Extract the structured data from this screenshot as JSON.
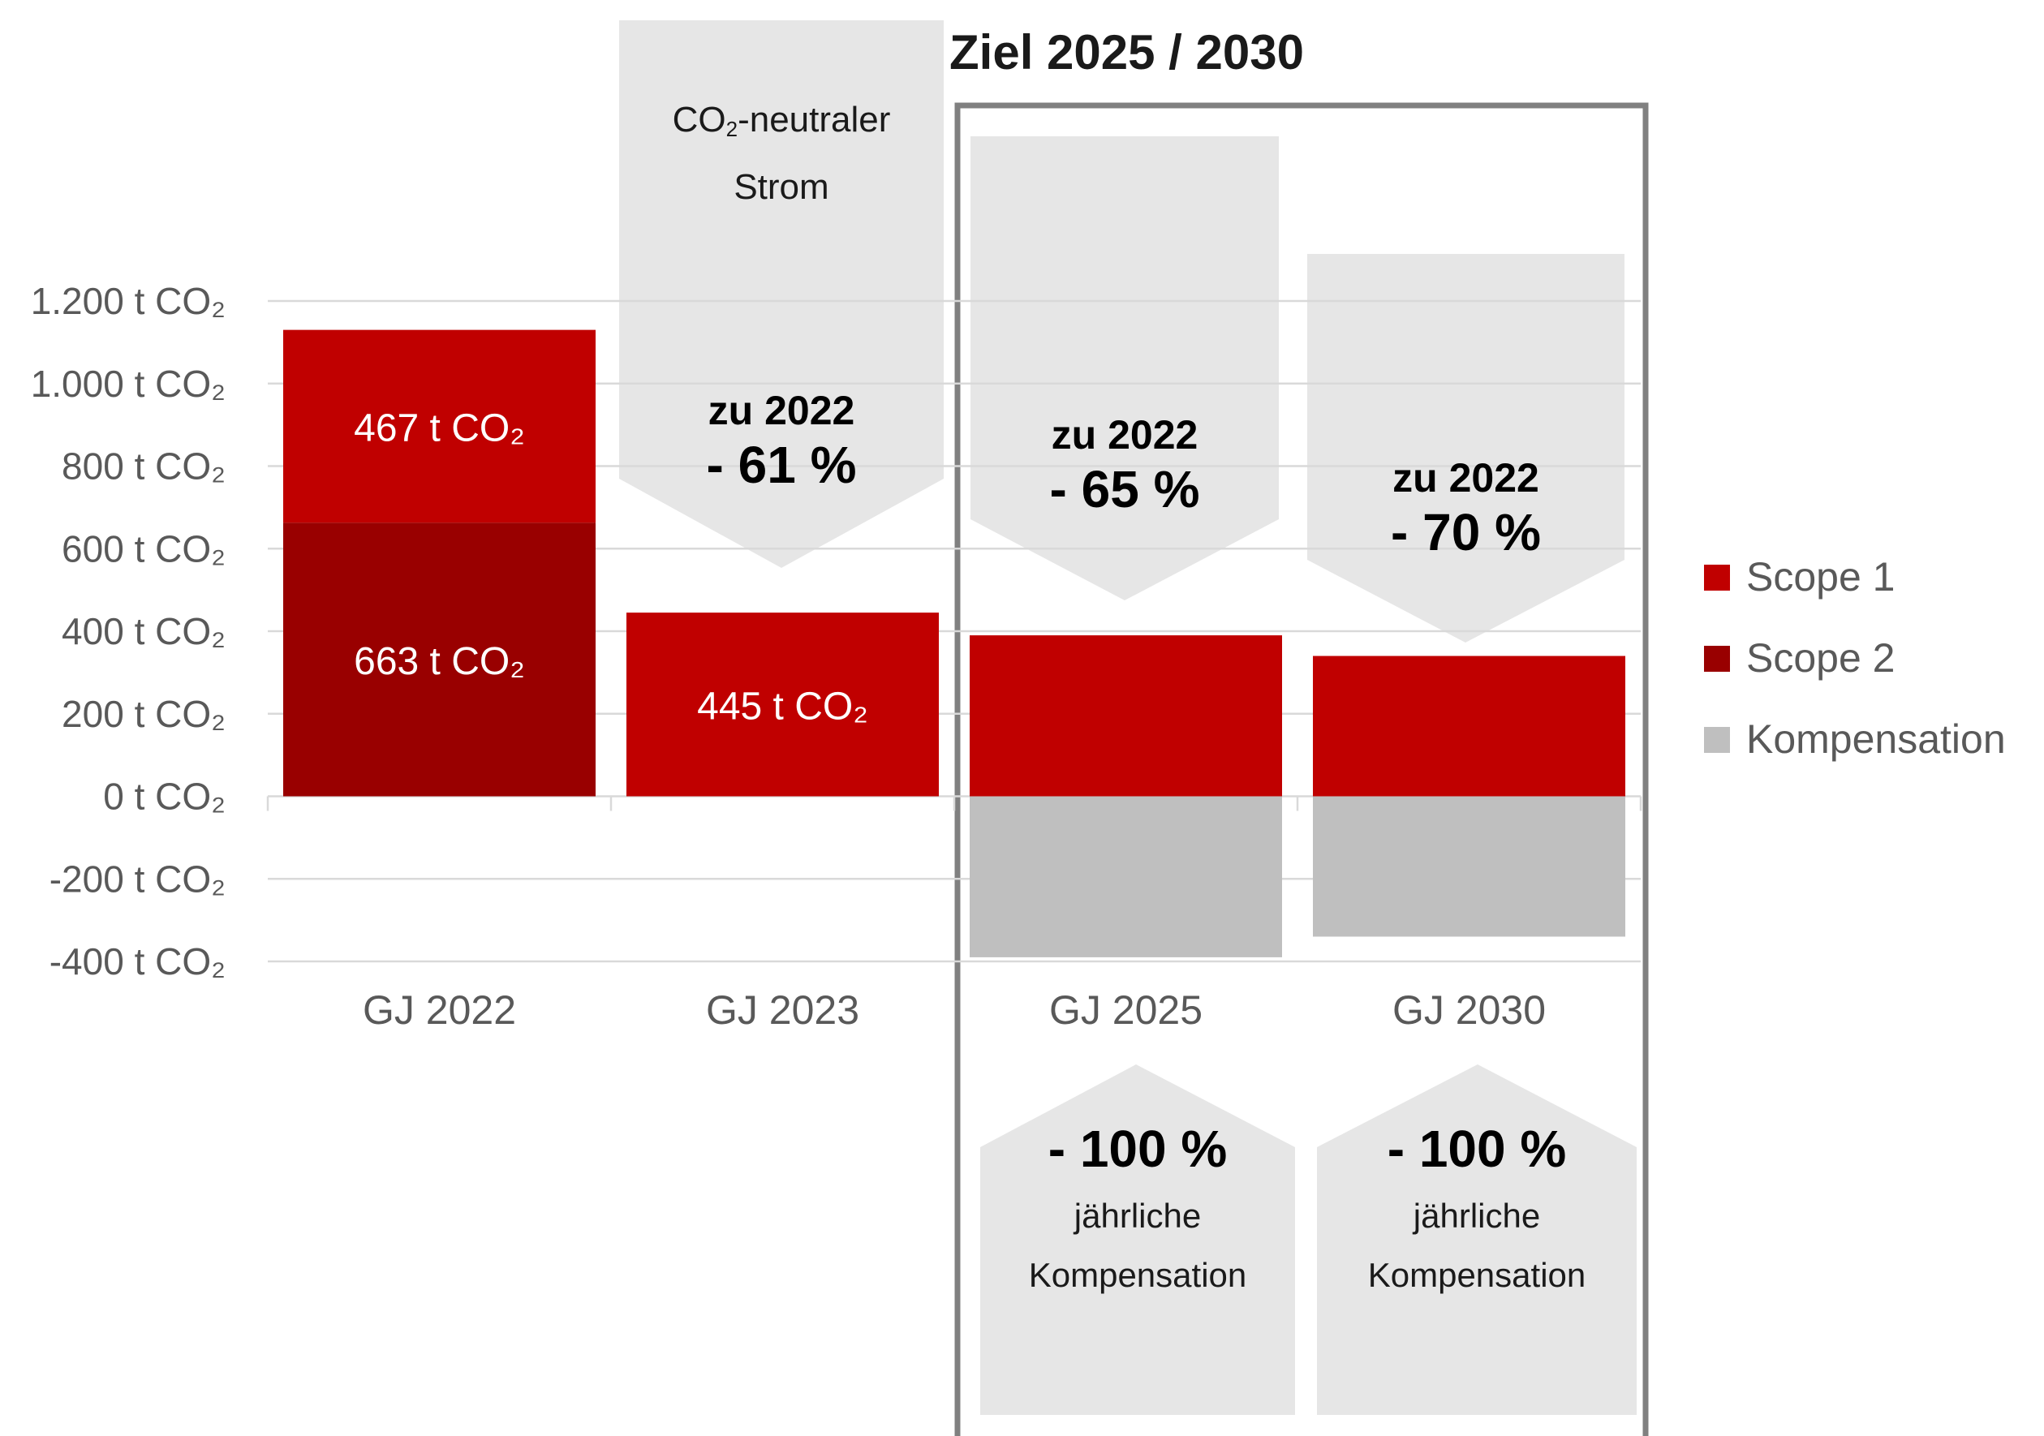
{
  "chart_data": {
    "type": "bar",
    "stacked": true,
    "title": "Ziel 2025 / 2030",
    "categories": [
      "GJ 2022",
      "GJ 2023",
      "GJ 2025",
      "GJ 2030"
    ],
    "series": [
      {
        "name": "Scope 1",
        "color": "#c00000",
        "values": [
          467,
          445,
          390,
          340
        ]
      },
      {
        "name": "Scope 2",
        "color": "#990000",
        "values": [
          663,
          0,
          0,
          0
        ]
      },
      {
        "name": "Kompensation",
        "color": "#bfbfbf",
        "values": [
          0,
          0,
          -390,
          -340
        ]
      }
    ],
    "ylim": [
      -400,
      1200
    ],
    "yticks": [
      1200,
      1000,
      800,
      600,
      400,
      200,
      0,
      -200,
      -400
    ],
    "ytick_labels": [
      "1.200 t CO₂",
      "1.000 t CO₂",
      "800 t CO₂",
      "600 t CO₂",
      "400 t CO₂",
      "200 t CO₂",
      "0 t CO₂",
      "-200 t CO₂",
      "-400 t CO₂"
    ],
    "grid": true,
    "legend_position": "right",
    "data_labels": [
      {
        "category": "GJ 2022",
        "series": "Scope 1",
        "text": "467 t CO₂"
      },
      {
        "category": "GJ 2022",
        "series": "Scope 2",
        "text": "663 t CO₂"
      },
      {
        "category": "GJ 2023",
        "series": "Scope 1",
        "text": "445 t CO₂"
      }
    ]
  },
  "annotations": {
    "goal_title": "Ziel 2025 / 2030",
    "gj2023_note_main": "CO",
    "gj2023_note_sub": "2",
    "gj2023_note_rest": "-neutraler",
    "gj2023_note_line2": "Strom",
    "reductions": [
      {
        "category": "GJ 2023",
        "label": "zu 2022",
        "value": "- 61 %"
      },
      {
        "category": "GJ 2025",
        "label": "zu 2022",
        "value": "- 65 %"
      },
      {
        "category": "GJ 2030",
        "label": "zu 2022",
        "value": "- 70 %"
      }
    ],
    "compensation": [
      {
        "category": "GJ 2025",
        "value": "- 100 %",
        "line1": "jährliche",
        "line2": "Kompensation"
      },
      {
        "category": "GJ 2030",
        "value": "- 100 %",
        "line1": "jährliche",
        "line2": "Kompensation"
      }
    ]
  },
  "colors": {
    "scope1": "#c00000",
    "scope2": "#990000",
    "kompensation": "#bfbfbf",
    "callout_fill": "#e6e6e6",
    "goal_frame": "#808080",
    "grid": "#d9d9d9",
    "axis_text": "#595959"
  }
}
